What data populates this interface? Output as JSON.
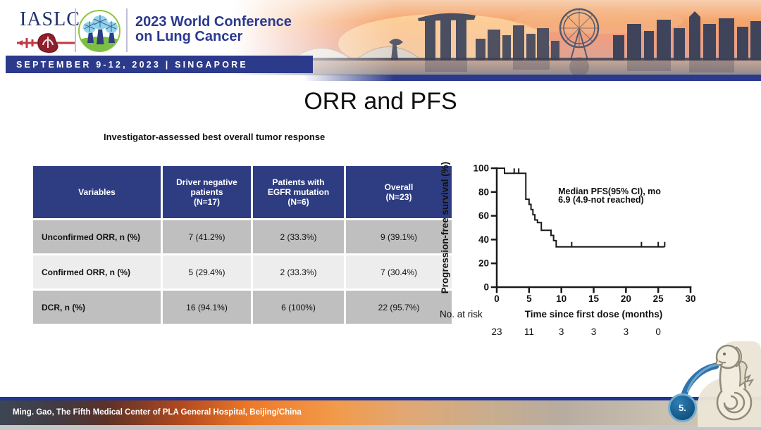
{
  "header": {
    "logo_text": "IASLC",
    "conference_line1": "2023 World Conference",
    "conference_line2": "on Lung Cancer",
    "banner_text": "SEPTEMBER 9-12, 2023 | SINGAPORE"
  },
  "slide": {
    "title": "ORR and PFS",
    "table_caption": "Investigator-assessed best overall tumor response"
  },
  "table": {
    "headers": [
      "Variables",
      "Driver negative\npatients\n(N=17)",
      "Patients with\nEGFR mutation\n(N=6)",
      "Overall\n(N=23)"
    ],
    "rows": [
      {
        "label": "Unconfirmed ORR, n (%)",
        "values": [
          "7 (41.2%)",
          "2 (33.3%)",
          "9 (39.1%)"
        ]
      },
      {
        "label": "Confirmed ORR, n (%)",
        "values": [
          "5 (29.4%)",
          "2 (33.3%)",
          "7 (30.4%)"
        ]
      },
      {
        "label": "DCR, n (%)",
        "values": [
          "16 (94.1%)",
          "6 (100%)",
          "22 (95.7%)"
        ]
      }
    ]
  },
  "chart_data": {
    "type": "line",
    "subtype": "kaplan-meier-step",
    "xlabel": "Time since first dose (months)",
    "ylabel": "Progression-free survival (%)",
    "xlim": [
      0,
      30
    ],
    "ylim": [
      0,
      100
    ],
    "xticks": [
      0,
      5,
      10,
      15,
      20,
      25,
      30
    ],
    "yticks": [
      0,
      20,
      40,
      60,
      80,
      100
    ],
    "grid": false,
    "legend": "none",
    "annotation_line1": "Median PFS(95% CI), mo",
    "annotation_line2": "6.9 (4.9-not reached)",
    "line_color": "#1a1a1a",
    "steps": [
      [
        0,
        100
      ],
      [
        1.2,
        100
      ],
      [
        1.2,
        95.7
      ],
      [
        4.5,
        95.7
      ],
      [
        4.5,
        73.9
      ],
      [
        5.0,
        73.9
      ],
      [
        5.0,
        69.6
      ],
      [
        5.3,
        69.6
      ],
      [
        5.3,
        65.2
      ],
      [
        5.6,
        65.2
      ],
      [
        5.6,
        60.9
      ],
      [
        5.9,
        60.9
      ],
      [
        5.9,
        56.5
      ],
      [
        6.3,
        56.5
      ],
      [
        6.3,
        54.3
      ],
      [
        6.9,
        54.3
      ],
      [
        6.9,
        47.8
      ],
      [
        8.4,
        47.8
      ],
      [
        8.4,
        43.5
      ],
      [
        8.8,
        43.5
      ],
      [
        8.8,
        39.1
      ],
      [
        9.2,
        39.1
      ],
      [
        9.2,
        33.9
      ],
      [
        26,
        33.9
      ]
    ],
    "censor_marks": [
      [
        2.7,
        95.7
      ],
      [
        3.4,
        95.7
      ],
      [
        11.6,
        33.9
      ],
      [
        22.4,
        33.9
      ],
      [
        25.0,
        33.9
      ],
      [
        26,
        33.9
      ]
    ],
    "risk_label": "No. at risk",
    "risk_times": [
      0,
      5,
      10,
      15,
      20,
      25
    ],
    "risk_counts": [
      23,
      11,
      3,
      3,
      3,
      0
    ]
  },
  "footer": {
    "credit": "Ming. Gao, The Fifth Medical Center of PLA General Hospital, Beijing/China",
    "page_number": "5."
  },
  "colors": {
    "navy": "#2c3a8c",
    "table_header": "#2e3d82",
    "row_dark": "#bfbfbf",
    "row_light": "#ededed",
    "footer_orange": "#ee7a28",
    "page_circle": "#11517f"
  }
}
